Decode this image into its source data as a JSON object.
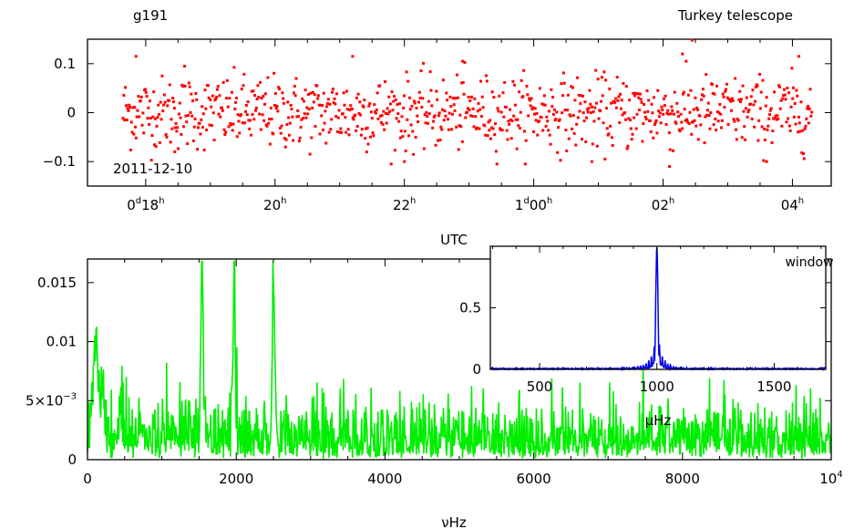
{
  "header": {
    "star_id": "g191",
    "site": "Turkey telescope",
    "date": "2011-12-10"
  },
  "colors": {
    "lightcurve": "#ff0000",
    "spectrum": "#00ee00",
    "window": "#0000ee"
  },
  "chart_data": [
    {
      "type": "scatter",
      "ylim": [
        -0.15,
        0.15
      ],
      "xlim": [
        17.1,
        28.6
      ],
      "xlabel": "UTC",
      "ylabel": "",
      "y_ticks": [
        {
          "value": 0.1,
          "label": "0.1"
        },
        {
          "value": 0,
          "label": "0"
        },
        {
          "value": -0.1,
          "label": "−0.1"
        }
      ],
      "x_ticks": [
        {
          "value": 18,
          "label": "0",
          "sup": "d",
          "label2": "18",
          "sup2": "h"
        },
        {
          "value": 20,
          "label": "20",
          "sup": "h"
        },
        {
          "value": 22,
          "label": "22",
          "sup": "h"
        },
        {
          "value": 24,
          "label": "1",
          "sup": "d",
          "label2": "00",
          "sup2": "h"
        },
        {
          "value": 26,
          "label": "02",
          "sup": "h"
        },
        {
          "value": 28,
          "label": "04",
          "sup": "h"
        }
      ],
      "x_range_data": [
        17.65,
        28.3
      ],
      "n_points": 900,
      "scatter_sd": 0.037,
      "outliers": [
        {
          "x": 17.85,
          "y": 0.115
        },
        {
          "x": 18.6,
          "y": 0.095
        },
        {
          "x": 18.45,
          "y": -0.08
        },
        {
          "x": 21.2,
          "y": 0.115
        },
        {
          "x": 22.9,
          "y": 0.105
        },
        {
          "x": 22.0,
          "y": -0.1
        },
        {
          "x": 24.9,
          "y": -0.1
        },
        {
          "x": 26.45,
          "y": 0.148
        },
        {
          "x": 26.3,
          "y": 0.12
        },
        {
          "x": 26.1,
          "y": -0.11
        },
        {
          "x": 28.1,
          "y": 0.115
        },
        {
          "x": 27.6,
          "y": -0.1
        }
      ]
    },
    {
      "type": "line",
      "xlim": [
        0,
        10000
      ],
      "ylim": [
        0,
        0.017
      ],
      "xlabel": "νHz",
      "ylabel": "",
      "x_ticks": [
        {
          "value": 0,
          "label": "0"
        },
        {
          "value": 2000,
          "label": "2000"
        },
        {
          "value": 4000,
          "label": "4000"
        },
        {
          "value": 6000,
          "label": "6000"
        },
        {
          "value": 8000,
          "label": "8000"
        },
        {
          "value": 10000,
          "label": "10",
          "sup": "4"
        }
      ],
      "y_ticks": [
        {
          "value": 0,
          "label": "0"
        },
        {
          "value": 0.005,
          "label": "5×10",
          "sup": "−3"
        },
        {
          "value": 0.01,
          "label": "0.01"
        },
        {
          "value": 0.015,
          "label": "0.015"
        }
      ],
      "peaks": [
        {
          "x": 1540,
          "y": 0.0163
        },
        {
          "x": 1970,
          "y": 0.0145
        },
        {
          "x": 2500,
          "y": 0.0145
        },
        {
          "x": 120,
          "y": 0.0072
        }
      ],
      "noise_level": 0.0022
    },
    {
      "type": "line",
      "title": "window",
      "xlim": [
        290,
        1720
      ],
      "ylim": [
        0,
        1.0
      ],
      "xlabel": "μHz",
      "x_ticks": [
        {
          "value": 500,
          "label": "500"
        },
        {
          "value": 1000,
          "label": "1000"
        },
        {
          "value": 1500,
          "label": "1500"
        }
      ],
      "y_ticks": [
        {
          "value": 0,
          "label": "0"
        },
        {
          "value": 0.5,
          "label": "0.5"
        }
      ],
      "center": 1000,
      "peak": 1.0
    }
  ]
}
